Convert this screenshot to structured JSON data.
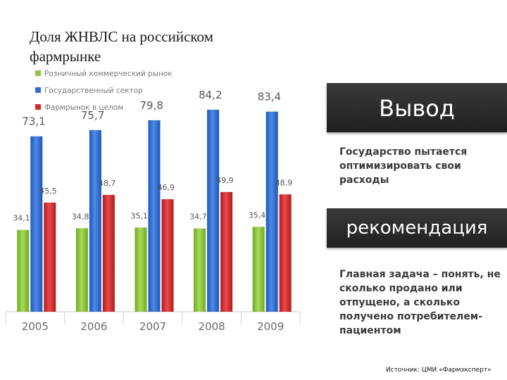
{
  "slide": {
    "title": "Доля ЖНВЛС на российском фармрынке",
    "conclusion_title": "Вывод",
    "conclusion_text": "Государство пытается оптимизировать свои расходы",
    "recommendation_title": "рекомендация",
    "recommendation_text": "Главная задача – понять, не сколько продано или отпущено, а сколько получено потребителем-пациентом",
    "source": "Источник: ЦМИ «Фармэксперт»"
  },
  "chart_data": {
    "type": "bar",
    "categories": [
      "2005",
      "2006",
      "2007",
      "2008",
      "2009"
    ],
    "series": [
      {
        "name": "Розничный коммерческий рынок",
        "color": "#8dc63f",
        "labels": [
          "34,1",
          "34,8",
          "35,1",
          "34,7",
          "35,4"
        ],
        "values": [
          34.1,
          34.8,
          35.1,
          34.7,
          35.4
        ]
      },
      {
        "name": "Государственный сектор",
        "color": "#2f6fd1",
        "labels": [
          "73,1",
          "75,7",
          "79,8",
          "84,2",
          "83,4"
        ],
        "values": [
          73.1,
          75.7,
          79.8,
          84.2,
          83.4
        ]
      },
      {
        "name": "Фармрынок в целом",
        "color": "#d42a2a",
        "labels": [
          "45,5",
          "48,7",
          "46,9",
          "49,9",
          "48,9"
        ],
        "values": [
          45.5,
          48.7,
          46.9,
          49.9,
          48.9
        ]
      }
    ],
    "legend_position": "top-left",
    "grid": false,
    "ylim": [
      0,
      100
    ]
  }
}
